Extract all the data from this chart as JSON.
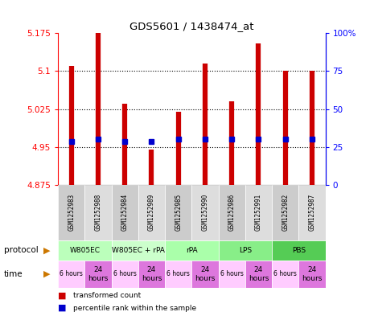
{
  "title": "GDS5601 / 1438474_at",
  "samples": [
    "GSM1252983",
    "GSM1252988",
    "GSM1252984",
    "GSM1252989",
    "GSM1252985",
    "GSM1252990",
    "GSM1252986",
    "GSM1252991",
    "GSM1252982",
    "GSM1252987"
  ],
  "transformed_counts": [
    5.11,
    5.175,
    5.035,
    4.945,
    5.02,
    5.115,
    5.04,
    5.155,
    5.1,
    5.1
  ],
  "percentile_ranks": [
    4.96,
    4.965,
    4.96,
    4.96,
    4.965,
    4.965,
    4.965,
    4.965,
    4.965,
    4.965
  ],
  "ylim": [
    4.875,
    5.175
  ],
  "yticks": [
    4.875,
    4.95,
    5.025,
    5.1,
    5.175
  ],
  "ytick_labels": [
    "4.875",
    "4.95",
    "5.025",
    "5.1",
    "5.175"
  ],
  "y2ticks": [
    0,
    25,
    50,
    75,
    100
  ],
  "y2tick_labels": [
    "0",
    "25",
    "50",
    "75",
    "100%"
  ],
  "bar_color": "#cc0000",
  "dot_color": "#0000cc",
  "baseline": 4.875,
  "protocol_data": [
    {
      "label": "W805EC",
      "start": 0,
      "end": 2,
      "color": "#bbffbb"
    },
    {
      "label": "W805EC + rPA",
      "start": 2,
      "end": 4,
      "color": "#ccffcc"
    },
    {
      "label": "rPA",
      "start": 4,
      "end": 6,
      "color": "#aaffaa"
    },
    {
      "label": "LPS",
      "start": 6,
      "end": 8,
      "color": "#88ee88"
    },
    {
      "label": "PBS",
      "start": 8,
      "end": 10,
      "color": "#55cc55"
    }
  ],
  "times": [
    "6 hours",
    "24\nhours",
    "6 hours",
    "24\nhours",
    "6 hours",
    "24\nhours",
    "6 hours",
    "24\nhours",
    "6 hours",
    "24\nhours"
  ],
  "time_color_6h": "#ffccff",
  "time_color_24h": "#dd77dd",
  "legend_red": "transformed count",
  "legend_blue": "percentile rank within the sample",
  "protocol_label": "protocol",
  "time_label": "time",
  "arrow_color": "#cc7700",
  "grid_lines": [
    4.95,
    5.025,
    5.1
  ],
  "sample_bg_even": "#cccccc",
  "sample_bg_odd": "#dddddd"
}
